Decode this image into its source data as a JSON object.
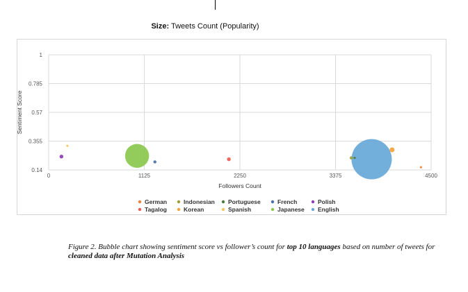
{
  "size_note": {
    "label": "Size:",
    "text": "Tweets Count (Popularity)"
  },
  "caption": {
    "part1": "Figure 2. Bubble chart showing sentiment score vs follower’s count for ",
    "bold1": "top 10 languages",
    "part2": " based on number of tweets for ",
    "bold2": "cleaned data after Mutation Analysis"
  },
  "chart_data": {
    "type": "scatter",
    "subtype": "bubble",
    "xlabel": "Followers Count",
    "ylabel": "Sentiment Score",
    "xlim": [
      0,
      4500
    ],
    "ylim": [
      0.14,
      1
    ],
    "x_ticks": [
      "0",
      "1125",
      "2250",
      "3375",
      "4500"
    ],
    "y_ticks": [
      "0.14",
      "0.355",
      "0.57",
      "0.785",
      "1"
    ],
    "grid": true,
    "legend_position": "bottom",
    "size_encoding": "Tweets Count (Popularity)",
    "series": [
      {
        "name": "German",
        "color": "#f1813b",
        "points": [
          {
            "x": 4380,
            "y": 0.16,
            "size": 1
          }
        ]
      },
      {
        "name": "Tagalog",
        "color": "#ef5a4f",
        "points": [
          {
            "x": 2120,
            "y": 0.22,
            "size": 3
          }
        ]
      },
      {
        "name": "Indonesian",
        "color": "#9d9d35",
        "points": [
          {
            "x": 3560,
            "y": 0.23,
            "size": 2
          }
        ]
      },
      {
        "name": "Korean",
        "color": "#f6a13a",
        "points": [
          {
            "x": 4040,
            "y": 0.29,
            "size": 5
          }
        ]
      },
      {
        "name": "Portuguese",
        "color": "#4d7a3c",
        "points": [
          {
            "x": 3600,
            "y": 0.23,
            "size": 1
          }
        ]
      },
      {
        "name": "Spanish",
        "color": "#f2c75e",
        "points": [
          {
            "x": 220,
            "y": 0.32,
            "size": 1
          }
        ]
      },
      {
        "name": "French",
        "color": "#4a6fa5",
        "points": [
          {
            "x": 1250,
            "y": 0.2,
            "size": 2
          }
        ]
      },
      {
        "name": "Japanese",
        "color": "#8bc84e",
        "points": [
          {
            "x": 1040,
            "y": 0.245,
            "size": 120
          }
        ]
      },
      {
        "name": "Polish",
        "color": "#8a3cb8",
        "points": [
          {
            "x": 150,
            "y": 0.24,
            "size": 3
          }
        ]
      },
      {
        "name": "English",
        "color": "#67a8d8",
        "points": [
          {
            "x": 3800,
            "y": 0.22,
            "size": 340
          }
        ]
      }
    ]
  }
}
